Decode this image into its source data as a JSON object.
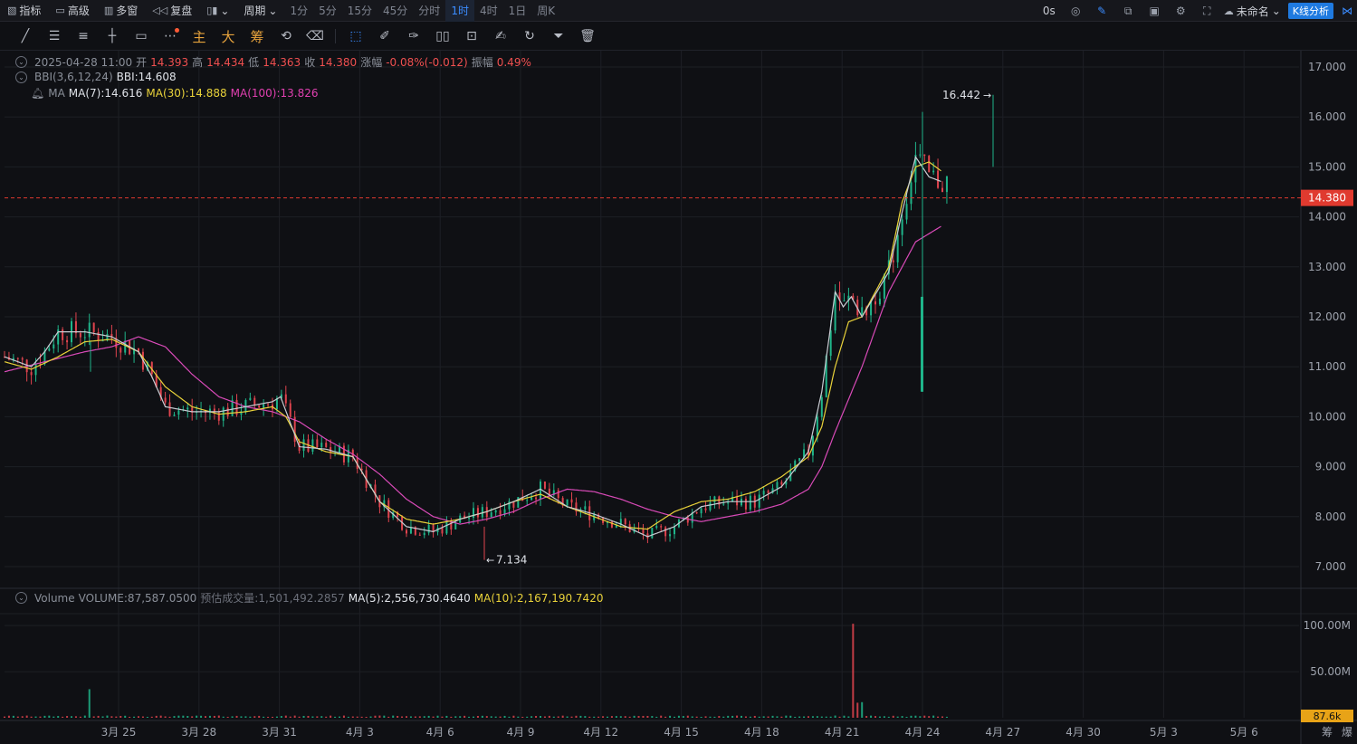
{
  "topbar": {
    "indicator": "指标",
    "advanced": "高级",
    "multi_window": "多窗",
    "replay": "复盘",
    "period_label": "周期",
    "periods": [
      "1分",
      "5分",
      "15分",
      "45分",
      "分时",
      "1时",
      "4时",
      "1日",
      "周K"
    ],
    "active_period": "1时",
    "timer": "0s",
    "layout_name": "未命名",
    "kline_analysis": "K线分析"
  },
  "toolbar": {
    "main_label": "主",
    "big_label": "大",
    "chip_label": "筹"
  },
  "legend": {
    "datetime": "2025-04-28 11:00",
    "open_label": "开",
    "open": "14.393",
    "high_label": "高",
    "high": "14.434",
    "low_label": "低",
    "low": "14.363",
    "close_label": "收",
    "close": "14.380",
    "change_label": "涨幅",
    "change": "-0.08%(-0.012)",
    "amp_label": "振幅",
    "amp": "0.49%",
    "bbi_name": "BBI(3,6,12,24)",
    "bbi_value": "BBI:14.608",
    "ma_name": "MA",
    "ma7": "MA(7):14.616",
    "ma30": "MA(30):14.888",
    "ma100": "MA(100):13.826"
  },
  "volume_legend": {
    "name": "Volume",
    "volume": "VOLUME:87,587.0500",
    "est_label": "预估成交量:1,501,492.2857",
    "ma5": "MA(5):2,556,730.4640",
    "ma10": "MA(10):2,167,190.7420"
  },
  "colors": {
    "up": "#1fb58a",
    "down": "#e0444e",
    "ma7": "#c9ccd3",
    "ma30": "#e9d23a",
    "ma100": "#d94ab8",
    "current_price_bg": "#e03a2f",
    "volume_badge": "#e8a317"
  },
  "chart_data": {
    "type": "line",
    "title": "",
    "price_axis": {
      "ticks": [
        "17.000",
        "16.000",
        "15.000",
        "14.000",
        "13.000",
        "12.000",
        "11.000",
        "10.000",
        "9.000",
        "8.000",
        "7.000"
      ],
      "ylim": [
        6.7,
        17.2
      ]
    },
    "volume_axis": {
      "ticks": [
        "100.00M",
        "50.00M"
      ],
      "ylim": [
        0,
        110000000
      ]
    },
    "x_ticks": [
      "3月 25",
      "3月 28",
      "3月 31",
      "4月 3",
      "4月 6",
      "4月 9",
      "4月 12",
      "4月 15",
      "4月 18",
      "4月 21",
      "4月 24",
      "4月 27",
      "4月 30",
      "5月 3",
      "5月 6"
    ],
    "x_tick_day_index": [
      1,
      4,
      7,
      10,
      13,
      16,
      19,
      22,
      25,
      28,
      31,
      34,
      37,
      40,
      43
    ],
    "current_price": "14.380",
    "current_volume": "87.6k",
    "high_marker": "16.442",
    "low_marker": "7.134",
    "high_value": 16.442,
    "low_value": 7.134,
    "series": [
      {
        "name": "MA(7)",
        "x_day": [
          0,
          1,
          1.5,
          2,
          3,
          4,
          5,
          5.5,
          6,
          7,
          8,
          9,
          10,
          10.3,
          11,
          12,
          13,
          14,
          15,
          16,
          17,
          18,
          19,
          20,
          21,
          22,
          23,
          24,
          25,
          26,
          27,
          28,
          29,
          30,
          30.5,
          31,
          31.3,
          31.6,
          32,
          33,
          33.5,
          34,
          34.5,
          35
        ],
        "values": [
          11.2,
          11.0,
          11.3,
          11.7,
          11.7,
          11.6,
          11.3,
          10.8,
          10.2,
          10.1,
          10.1,
          10.2,
          10.3,
          10.4,
          9.4,
          9.35,
          9.2,
          8.3,
          7.8,
          7.7,
          7.95,
          8.1,
          8.3,
          8.55,
          8.2,
          8.05,
          7.85,
          7.6,
          7.8,
          8.2,
          8.3,
          8.3,
          8.6,
          9.3,
          10.5,
          12.5,
          12.2,
          12.4,
          12.0,
          12.9,
          14.1,
          15.2,
          14.8,
          14.7
        ]
      },
      {
        "name": "MA(30)",
        "x_day": [
          0,
          1,
          2,
          3,
          4,
          5,
          6,
          7,
          8,
          9,
          10,
          10.5,
          11,
          12,
          13,
          14,
          15,
          16,
          17,
          18,
          19,
          20,
          21,
          22,
          23,
          24,
          25,
          26,
          27,
          28,
          29,
          30,
          30.5,
          31,
          31.5,
          32,
          33,
          33.5,
          34,
          34.5,
          35
        ],
        "values": [
          11.1,
          10.95,
          11.2,
          11.5,
          11.55,
          11.3,
          10.6,
          10.2,
          10.05,
          10.1,
          10.2,
          10.0,
          9.5,
          9.3,
          9.2,
          8.3,
          7.95,
          7.85,
          7.95,
          8.1,
          8.3,
          8.45,
          8.2,
          8.0,
          7.8,
          7.75,
          8.1,
          8.3,
          8.35,
          8.5,
          8.8,
          9.2,
          9.8,
          11.0,
          11.9,
          12.0,
          13.0,
          14.3,
          15.0,
          15.1,
          14.9
        ]
      },
      {
        "name": "MA(100)",
        "x_day": [
          0,
          3,
          4,
          5,
          6,
          7,
          8,
          9,
          10,
          11,
          12,
          13,
          14,
          15,
          16,
          17,
          18,
          19,
          20,
          21,
          22,
          23,
          24,
          25,
          26,
          27,
          28,
          29,
          30,
          30.5,
          31,
          32,
          33,
          34,
          35
        ],
        "values": [
          10.9,
          11.3,
          11.4,
          11.6,
          11.4,
          10.85,
          10.4,
          10.2,
          10.1,
          9.9,
          9.55,
          9.25,
          8.85,
          8.35,
          8.0,
          7.85,
          7.95,
          8.1,
          8.35,
          8.55,
          8.5,
          8.35,
          8.15,
          8.0,
          7.9,
          8.0,
          8.1,
          8.25,
          8.55,
          9.0,
          9.7,
          11.0,
          12.5,
          13.5,
          13.826
        ]
      }
    ]
  }
}
